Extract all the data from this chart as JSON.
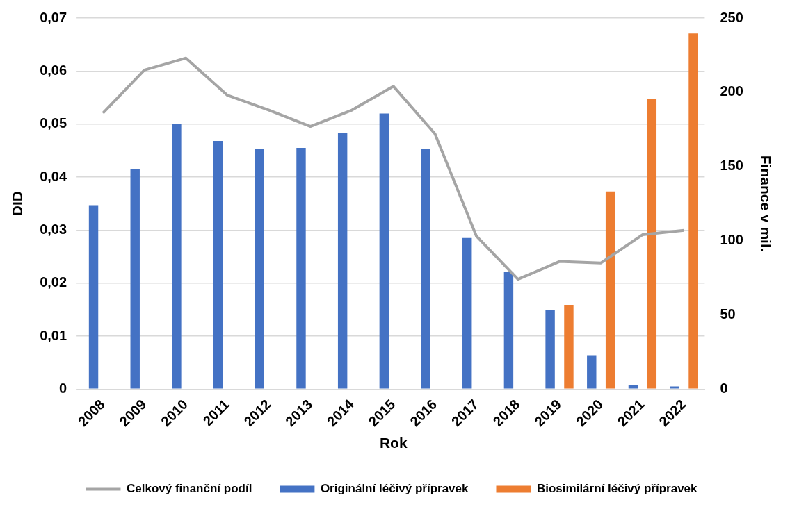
{
  "chart_data": {
    "type": "bar",
    "xlabel": "Rok",
    "ylabel": "DID",
    "y2label": "Finance v mil.",
    "categories": [
      "2008",
      "2009",
      "2010",
      "2011",
      "2012",
      "2013",
      "2014",
      "2015",
      "2016",
      "2017",
      "2018",
      "2019",
      "2020",
      "2021",
      "2022"
    ],
    "series": [
      {
        "name": "Originální léčivý přípravek",
        "color": "#4472c4",
        "values": [
          0.0347,
          0.0415,
          0.0501,
          0.0468,
          0.0453,
          0.0455,
          0.0484,
          0.052,
          0.0453,
          0.0285,
          0.0222,
          0.0149,
          0.0064,
          0.0007,
          0.0005
        ]
      },
      {
        "name": "Biosimilární léčivý přípravek",
        "color": "#ed7d31",
        "values": [
          null,
          null,
          null,
          null,
          null,
          null,
          null,
          null,
          null,
          null,
          null,
          0.0159,
          0.0373,
          0.0547,
          0.0671
        ]
      },
      {
        "name": "Celkový finanční podíl",
        "type": "line",
        "axis": "y2",
        "color": "#a5a5a5",
        "marker": "none",
        "values": [
          186,
          215,
          223,
          198,
          188,
          177,
          188,
          204,
          172,
          103,
          74,
          86,
          85,
          104,
          107
        ]
      }
    ],
    "ylim": [
      0,
      0.07
    ],
    "yticks": [
      {
        "value": 0,
        "label": "0"
      },
      {
        "value": 0.01,
        "label": "0,01"
      },
      {
        "value": 0.02,
        "label": "0,02"
      },
      {
        "value": 0.03,
        "label": "0,03"
      },
      {
        "value": 0.04,
        "label": "0,04"
      },
      {
        "value": 0.05,
        "label": "0,05"
      },
      {
        "value": 0.06,
        "label": "0,06"
      },
      {
        "value": 0.07,
        "label": "0,07"
      }
    ],
    "y2lim": [
      0,
      250
    ],
    "y2ticks": [
      0,
      50,
      100,
      150,
      200,
      250
    ],
    "grid": "y",
    "legend": "bottom"
  }
}
